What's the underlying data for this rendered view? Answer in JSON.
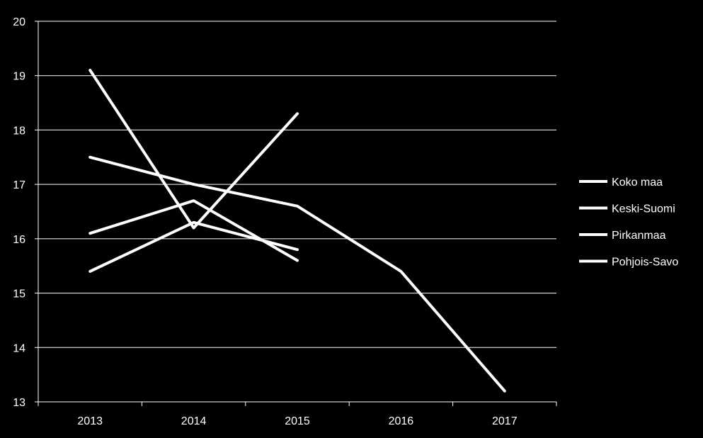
{
  "chart_data": {
    "type": "line",
    "title": "",
    "xlabel": "",
    "ylabel": "",
    "categories": [
      "2013",
      "2014",
      "2015",
      "2016",
      "2017"
    ],
    "ylim": [
      13,
      20
    ],
    "yticks": [
      13,
      14,
      15,
      16,
      17,
      18,
      19,
      20
    ],
    "grid": true,
    "legend_position": "right",
    "series": [
      {
        "name": "Koko maa",
        "values": [
          17.5,
          17.0,
          16.6,
          15.4,
          13.2
        ],
        "color": "#ffffff"
      },
      {
        "name": "Keski-Suomi",
        "values": [
          19.1,
          16.2,
          18.3,
          null,
          null
        ],
        "color": "#ffffff"
      },
      {
        "name": "Pirkanmaa",
        "values": [
          16.1,
          16.7,
          15.6,
          null,
          null
        ],
        "color": "#ffffff"
      },
      {
        "name": "Pohjois-Savo",
        "values": [
          15.4,
          16.3,
          15.8,
          null,
          null
        ],
        "color": "#ffffff"
      }
    ]
  },
  "colors": {
    "background": "#000000",
    "foreground": "#ffffff"
  }
}
